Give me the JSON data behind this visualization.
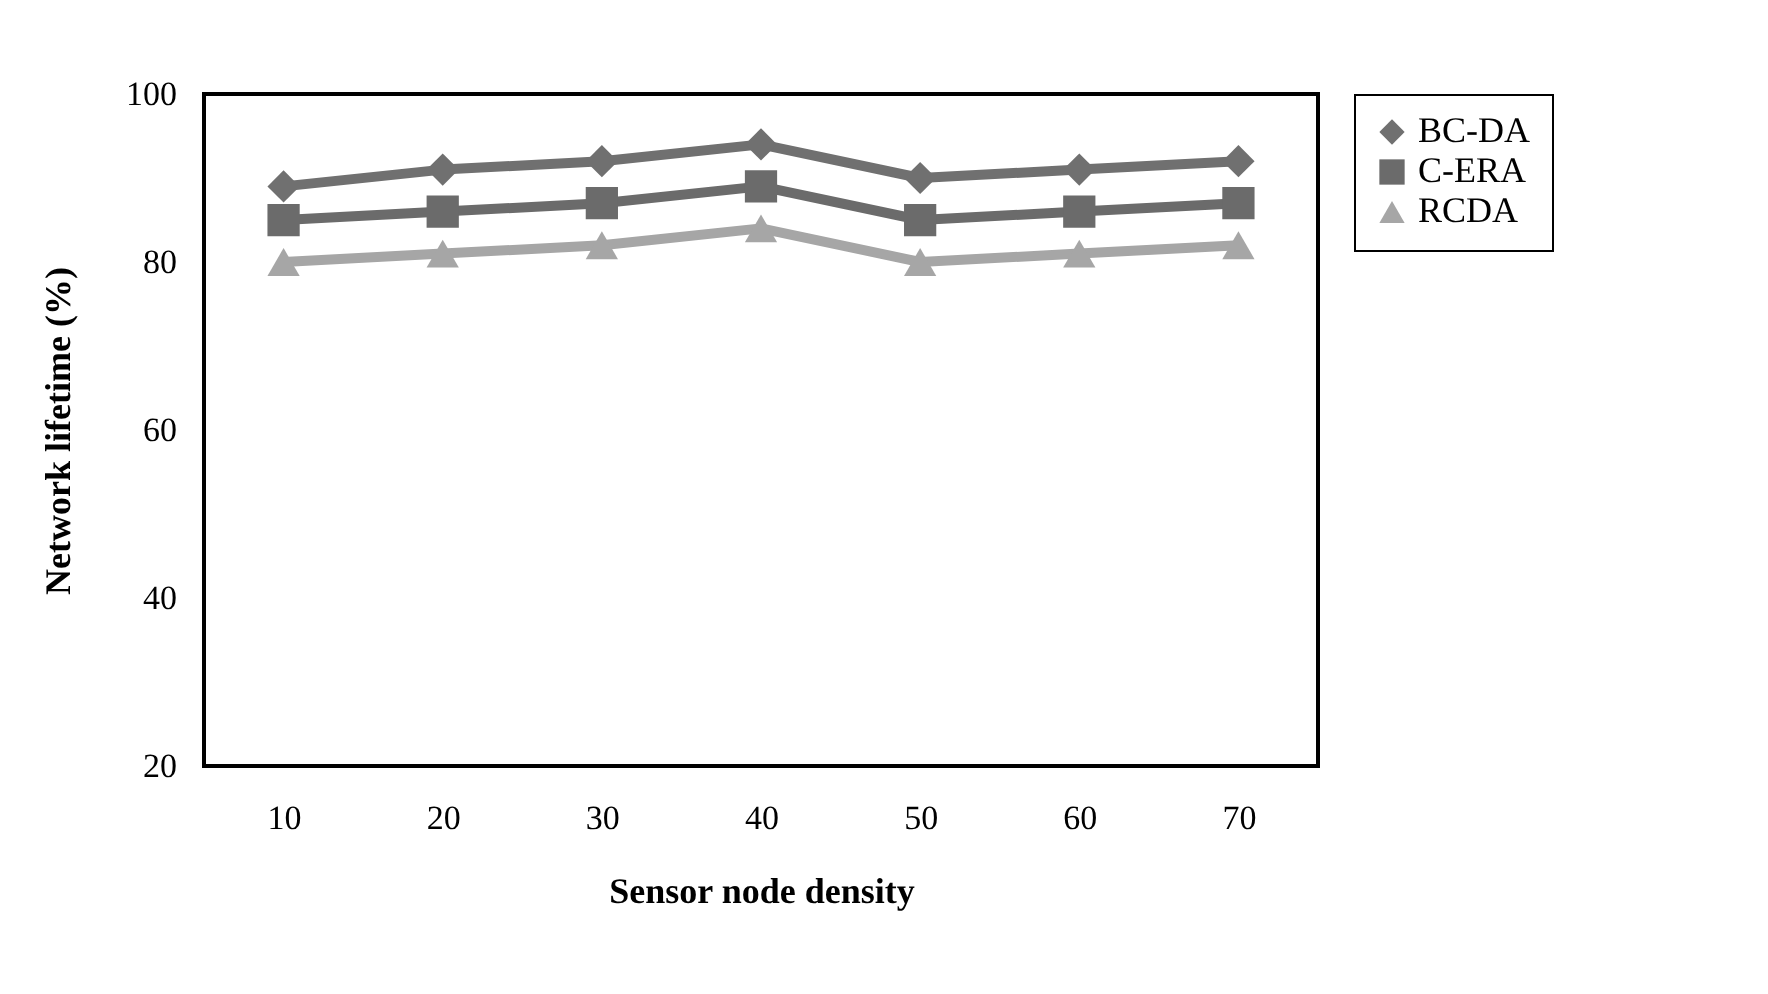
{
  "chart_data": {
    "type": "line",
    "xlabel": "Sensor node density",
    "ylabel": "Network lifetime  (%)",
    "categories": [
      "10",
      "20",
      "30",
      "40",
      "50",
      "60",
      "70"
    ],
    "series": [
      {
        "name": "BC-DA",
        "color": "#707070",
        "marker": "diamond",
        "values": [
          89,
          91,
          92,
          94,
          90,
          91,
          92
        ]
      },
      {
        "name": "C-ERA",
        "color": "#6b6b6b",
        "marker": "square",
        "values": [
          85,
          86,
          87,
          89,
          85,
          86,
          87
        ]
      },
      {
        "name": "RCDA",
        "color": "#a6a6a6",
        "marker": "triangle",
        "values": [
          80,
          81,
          82,
          84,
          80,
          81,
          82
        ]
      }
    ],
    "ylim": [
      20,
      100
    ],
    "yticks": [
      20,
      40,
      60,
      80,
      100
    ],
    "grid": false,
    "legend": "right",
    "line_style": "solid"
  }
}
